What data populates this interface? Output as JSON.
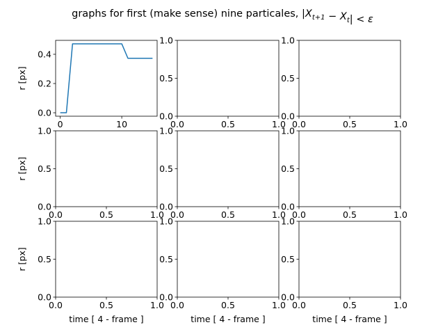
{
  "figure": {
    "title_text": "graphs for first (make sense) nine particales, ",
    "title_math": "|X_{t+1} - X_t| < ε"
  },
  "chart_data": [
    {
      "type": "line",
      "row": 0,
      "col": 0,
      "xlabel": "",
      "ylabel": "r [px]",
      "xlim": [
        -0.75,
        15.75
      ],
      "ylim": [
        -0.0236,
        0.4952
      ],
      "xticks": [
        0,
        10
      ],
      "yticks": [
        0.0,
        0.2,
        0.4
      ],
      "ytick_labels": [
        "0.0",
        "0.2",
        "0.4"
      ],
      "grid": false,
      "series": [
        {
          "color": "#1f77b4",
          "x": [
            0,
            1,
            2,
            3,
            4,
            5,
            6,
            7,
            8,
            9,
            10,
            11,
            12,
            13,
            14,
            15
          ],
          "y": [
            0.0,
            0.0,
            0.4716,
            0.4716,
            0.4716,
            0.4716,
            0.4716,
            0.4716,
            0.4716,
            0.4716,
            0.4716,
            0.3727,
            0.3727,
            0.3727,
            0.3727,
            0.3727
          ]
        }
      ]
    },
    {
      "type": "line",
      "row": 0,
      "col": 1,
      "xlabel": "",
      "ylabel": "",
      "xlim": [
        0,
        1
      ],
      "ylim": [
        0,
        1
      ],
      "xticks": [
        0.0,
        0.5,
        1.0
      ],
      "yticks": [
        0.0,
        0.5,
        1.0
      ],
      "series": []
    },
    {
      "type": "line",
      "row": 0,
      "col": 2,
      "xlabel": "",
      "ylabel": "",
      "xlim": [
        0,
        1
      ],
      "ylim": [
        0,
        1
      ],
      "xticks": [
        0.0,
        0.5,
        1.0
      ],
      "yticks": [
        0.0,
        0.5,
        1.0
      ],
      "series": []
    },
    {
      "type": "line",
      "row": 1,
      "col": 0,
      "xlabel": "",
      "ylabel": "r [px]",
      "xlim": [
        0,
        1
      ],
      "ylim": [
        0,
        1
      ],
      "xticks": [
        0.0,
        0.5,
        1.0
      ],
      "yticks": [
        0.0,
        0.5,
        1.0
      ],
      "series": []
    },
    {
      "type": "line",
      "row": 1,
      "col": 1,
      "xlabel": "",
      "ylabel": "",
      "xlim": [
        0,
        1
      ],
      "ylim": [
        0,
        1
      ],
      "xticks": [
        0.0,
        0.5,
        1.0
      ],
      "yticks": [
        0.0,
        0.5,
        1.0
      ],
      "series": []
    },
    {
      "type": "line",
      "row": 1,
      "col": 2,
      "xlabel": "",
      "ylabel": "",
      "xlim": [
        0,
        1
      ],
      "ylim": [
        0,
        1
      ],
      "xticks": [
        0.0,
        0.5,
        1.0
      ],
      "yticks": [
        0.0,
        0.5,
        1.0
      ],
      "series": []
    },
    {
      "type": "line",
      "row": 2,
      "col": 0,
      "xlabel": "time [ 4 - frame ]",
      "ylabel": "r [px]",
      "xlim": [
        0,
        1
      ],
      "ylim": [
        0,
        1
      ],
      "xticks": [
        0.0,
        0.5,
        1.0
      ],
      "yticks": [
        0.0,
        0.5,
        1.0
      ],
      "series": []
    },
    {
      "type": "line",
      "row": 2,
      "col": 1,
      "xlabel": "time [ 4 - frame ]",
      "ylabel": "",
      "xlim": [
        0,
        1
      ],
      "ylim": [
        0,
        1
      ],
      "xticks": [
        0.0,
        0.5,
        1.0
      ],
      "yticks": [
        0.0,
        0.5,
        1.0
      ],
      "series": []
    },
    {
      "type": "line",
      "row": 2,
      "col": 2,
      "xlabel": "time [ 4 - frame ]",
      "ylabel": "",
      "xlim": [
        0,
        1
      ],
      "ylim": [
        0,
        1
      ],
      "xticks": [
        0.0,
        0.5,
        1.0
      ],
      "yticks": [
        0.0,
        0.5,
        1.0
      ],
      "series": []
    }
  ]
}
